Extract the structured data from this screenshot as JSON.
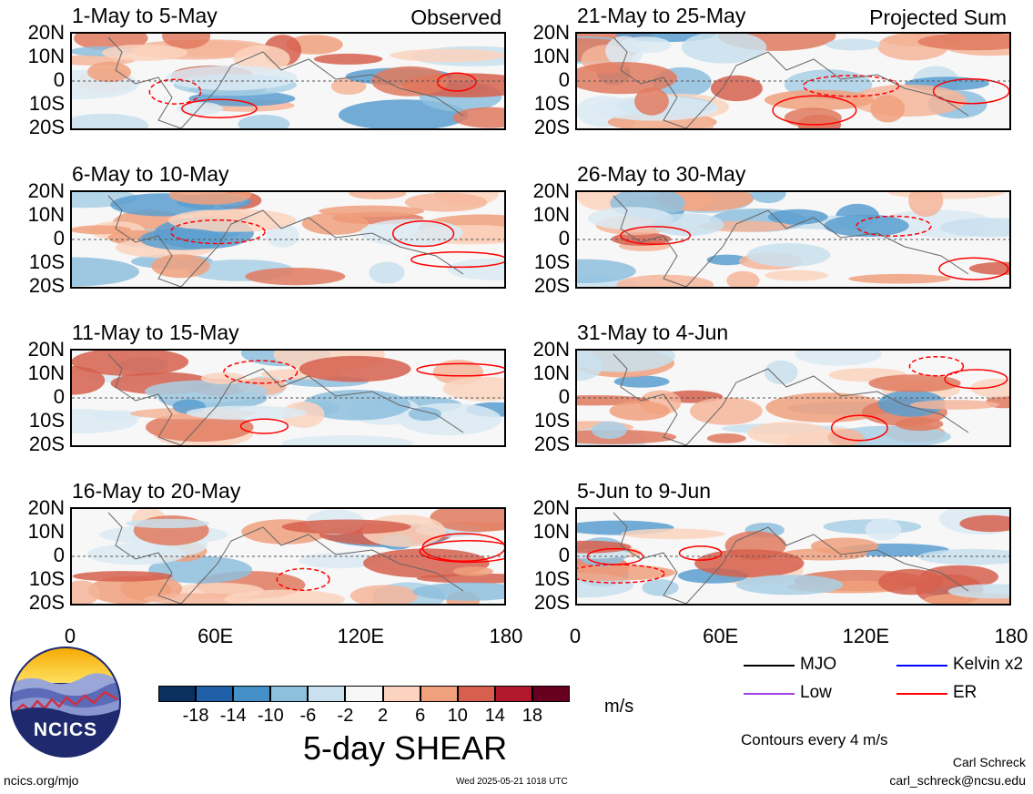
{
  "chart_data": {
    "type": "heatmap",
    "title": "5-day SHEAR",
    "units": "m/s",
    "xlabel": "",
    "ylabel": "",
    "x_ticks": [
      "0",
      "60E",
      "120E",
      "180"
    ],
    "y_ticks": [
      "20N",
      "10N",
      "0",
      "10S",
      "20S"
    ],
    "xlim": [
      0,
      180
    ],
    "ylim": [
      -20,
      20
    ],
    "columns": [
      {
        "tag": "Observed",
        "panels": [
          "1-May to 5-May",
          "6-May to 10-May",
          "11-May to 15-May",
          "16-May to 20-May"
        ]
      },
      {
        "tag": "Projected Sum",
        "panels": [
          "21-May to 25-May",
          "26-May to 30-May",
          "31-May to 4-Jun",
          "5-Jun to 9-Jun"
        ]
      }
    ],
    "colorbar": {
      "ticks": [
        "-18",
        "-14",
        "-10",
        "-6",
        "-2",
        "2",
        "6",
        "10",
        "14",
        "18"
      ],
      "colors": [
        "#0a3060",
        "#1f5fa8",
        "#4690c8",
        "#8ec0de",
        "#c9e0ee",
        "#f7f7f7",
        "#fbd3be",
        "#f0a07c",
        "#d6604d",
        "#b2182b",
        "#67001f"
      ]
    },
    "legend": [
      {
        "label": "MJO",
        "color": "#000000"
      },
      {
        "label": "Kelvin x2",
        "color": "#0000ff"
      },
      {
        "label": "Low",
        "color": "#a040e0"
      },
      {
        "label": "ER",
        "color": "#ff0000"
      }
    ],
    "contour_note": "Contours every 4 m/s"
  },
  "footer": {
    "logo_text": "NCICS",
    "url": "ncics.org/mjo",
    "timestamp": "Wed 2025-05-21 1018 UTC",
    "author": "Carl Schreck",
    "email": "carl_schreck@ncsu.edu"
  }
}
